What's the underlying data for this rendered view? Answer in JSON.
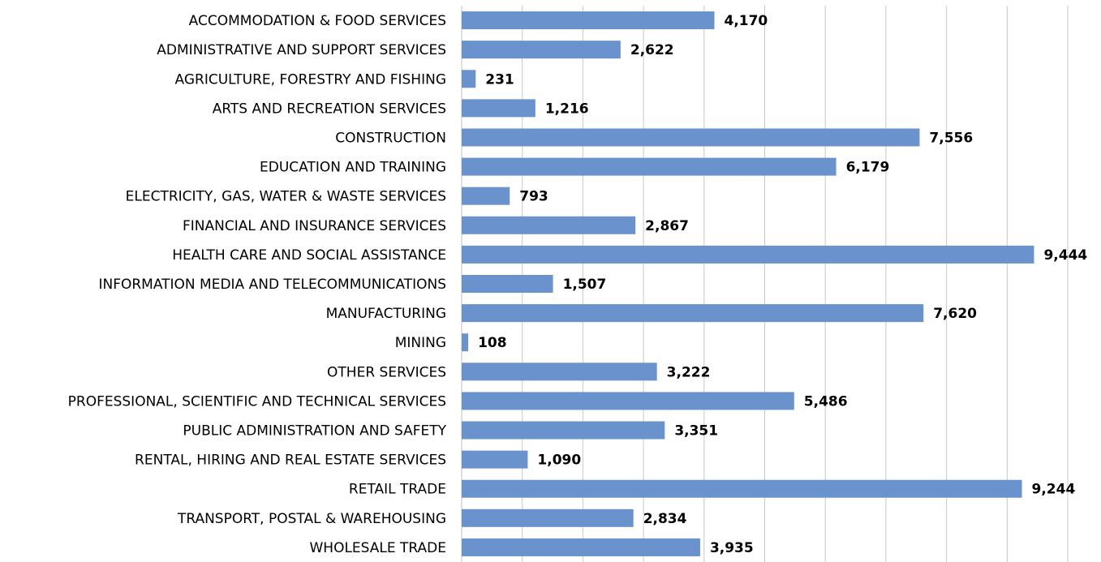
{
  "chart_data": {
    "type": "barh",
    "categories": [
      "ACCOMMODATION & FOOD SERVICES",
      "ADMINISTRATIVE AND SUPPORT SERVICES",
      "AGRICULTURE, FORESTRY AND FISHING",
      "ARTS AND RECREATION SERVICES",
      "CONSTRUCTION",
      "EDUCATION AND TRAINING",
      "ELECTRICITY, GAS, WATER & WASTE SERVICES",
      "FINANCIAL AND INSURANCE SERVICES",
      "HEALTH CARE AND SOCIAL ASSISTANCE",
      "INFORMATION MEDIA AND TELECOMMUNICATIONS",
      "MANUFACTURING",
      "MINING",
      "OTHER SERVICES",
      "PROFESSIONAL, SCIENTIFIC AND TECHNICAL SERVICES",
      "PUBLIC ADMINISTRATION AND SAFETY",
      "RENTAL, HIRING AND REAL ESTATE SERVICES",
      "RETAIL TRADE",
      "TRANSPORT, POSTAL & WAREHOUSING",
      "WHOLESALE TRADE"
    ],
    "values": [
      4170,
      2622,
      231,
      1216,
      7556,
      6179,
      793,
      2867,
      9444,
      1507,
      7620,
      108,
      3222,
      5486,
      3351,
      1090,
      9244,
      2834,
      3935
    ],
    "value_labels": [
      "4,170",
      "2,622",
      "231",
      "1,216",
      "7,556",
      "6,179",
      "793",
      "2,867",
      "9,444",
      "1,507",
      "7,620",
      "108",
      "3,222",
      "5,486",
      "3,351",
      "1,090",
      "9,244",
      "2,834",
      "3,935"
    ],
    "color": "#6a93cd",
    "xlim": [
      0,
      10000
    ],
    "xticks": [
      0,
      1000,
      2000,
      3000,
      4000,
      5000,
      6000,
      7000,
      8000,
      9000,
      10000
    ],
    "grid": true
  }
}
